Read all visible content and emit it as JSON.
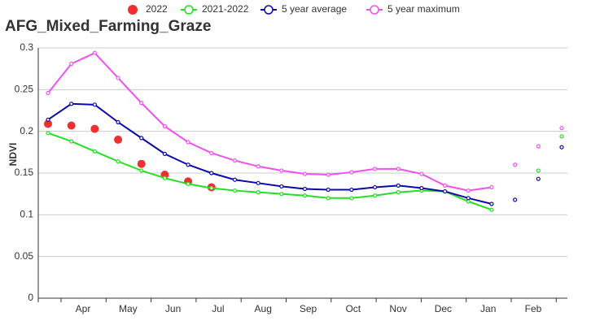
{
  "chart_data": {
    "type": "line",
    "title": "AFG_Mixed_Farming_Graze",
    "ylabel": "NDVI",
    "months": [
      "Apr",
      "May",
      "Jun",
      "Jul",
      "Aug",
      "Sep",
      "Oct",
      "Nov",
      "Dec",
      "Jan",
      "Feb"
    ],
    "categories": [
      null,
      null,
      null,
      null,
      null,
      null,
      null,
      null,
      null,
      null,
      null,
      null,
      null,
      null,
      null,
      null,
      null,
      null,
      null,
      null,
      null,
      null,
      null
    ],
    "ylim": [
      0,
      0.3
    ],
    "yticks": [
      0,
      0.05,
      0.1,
      0.15,
      0.2,
      0.25,
      0.3
    ],
    "grid": true,
    "line_points": 20,
    "legend": "top",
    "series": [
      {
        "name": "2022",
        "color": "#f03030",
        "mode": "markers",
        "values": [
          0.209,
          0.207,
          0.203,
          0.19,
          0.161,
          0.148,
          0.14,
          0.133,
          null,
          null,
          null,
          null,
          null,
          null,
          null,
          null,
          null,
          null,
          null,
          null,
          null,
          null,
          null
        ]
      },
      {
        "name": "2021-2022",
        "color": "#22e022",
        "mode": "lines",
        "values": [
          0.198,
          0.188,
          0.176,
          0.164,
          0.153,
          0.144,
          0.137,
          0.132,
          0.129,
          0.127,
          0.125,
          0.123,
          0.12,
          0.12,
          0.123,
          0.127,
          0.129,
          0.128,
          0.116,
          0.106,
          null,
          0.153,
          0.194
        ]
      },
      {
        "name": "5 year average",
        "color": "#0a0aa8",
        "mode": "lines",
        "values": [
          0.214,
          0.233,
          0.232,
          0.211,
          0.192,
          0.173,
          0.16,
          0.15,
          0.142,
          0.138,
          0.134,
          0.131,
          0.13,
          0.13,
          0.133,
          0.135,
          0.132,
          0.128,
          0.12,
          0.113,
          0.118,
          0.143,
          0.181
        ]
      },
      {
        "name": "5 year maximum",
        "color": "#f050f0",
        "mode": "lines",
        "values": [
          0.246,
          0.281,
          0.294,
          0.264,
          0.234,
          0.206,
          0.187,
          0.174,
          0.165,
          0.158,
          0.153,
          0.149,
          0.148,
          0.151,
          0.155,
          0.155,
          0.149,
          0.135,
          0.129,
          0.133,
          0.16,
          0.182,
          0.204
        ]
      }
    ]
  }
}
